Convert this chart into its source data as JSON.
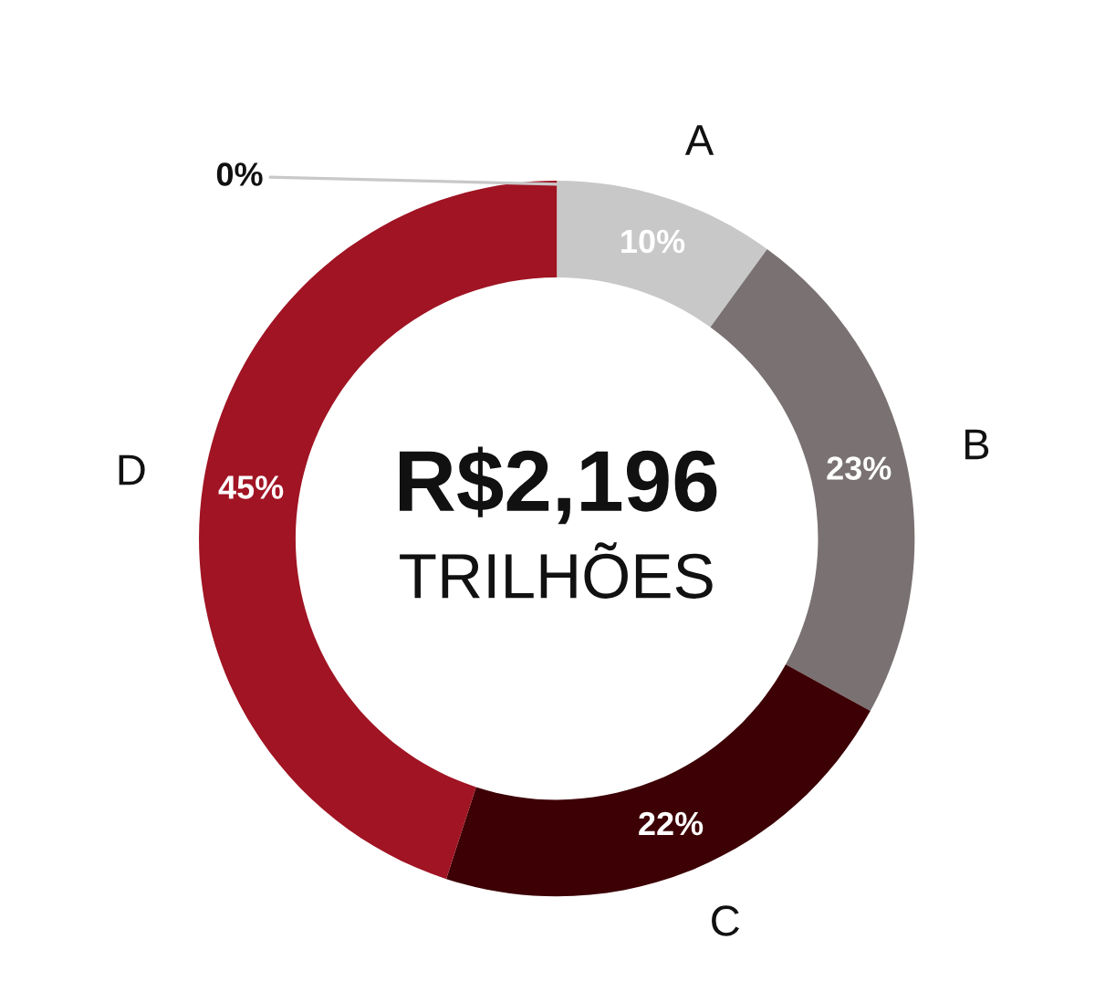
{
  "chart_data": {
    "type": "donut",
    "categories": [
      "A",
      "B",
      "C",
      "D",
      null
    ],
    "values": [
      10,
      23,
      22,
      45,
      0
    ],
    "colors": [
      "#c8c8c8",
      "#7a7272",
      "#3d0005",
      "#a01423",
      "#a01423"
    ],
    "value_labels": [
      "10%",
      "23%",
      "22%",
      "45%",
      "0%"
    ],
    "annotations": [
      "R$2,196",
      "TRILHÕES"
    ],
    "legend": false
  }
}
